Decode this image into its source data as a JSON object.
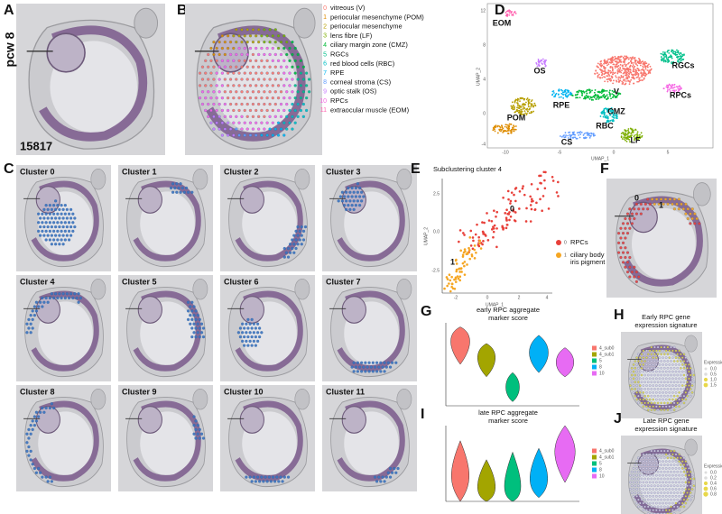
{
  "figure": {
    "A": {
      "letter": "A",
      "age": "pcw 8",
      "sample": "15817"
    },
    "B": {
      "letter": "B",
      "legend": [
        {
          "id": "0",
          "label": "vitreous (V)",
          "color": "#f8766d"
        },
        {
          "id": "1",
          "label": "periocular mesenchyme (POM)",
          "color": "#de8c00"
        },
        {
          "id": "2",
          "label": "periocular mesenchyme",
          "color": "#b79f00"
        },
        {
          "id": "3",
          "label": "lens fibre (LF)",
          "color": "#7cae00"
        },
        {
          "id": "4",
          "label": "ciliary margin zone (CMZ)",
          "color": "#00ba38"
        },
        {
          "id": "5",
          "label": "RGCs",
          "color": "#00c08b"
        },
        {
          "id": "6",
          "label": "red blood cells (RBC)",
          "color": "#00bfc4"
        },
        {
          "id": "7",
          "label": "RPE",
          "color": "#00b4f0"
        },
        {
          "id": "8",
          "label": "corneal stroma (CS)",
          "color": "#619cff"
        },
        {
          "id": "9",
          "label": "optic stalk (OS)",
          "color": "#c77cff"
        },
        {
          "id": "10",
          "label": "RPCs",
          "color": "#f564e3"
        },
        {
          "id": "11",
          "label": "extraocular muscle (EOM)",
          "color": "#ff64b0"
        }
      ]
    },
    "C": {
      "letter": "C",
      "clusters": [
        "Cluster 0",
        "Cluster 1",
        "Cluster 2",
        "Cluster 3",
        "Cluster 4",
        "Cluster 5",
        "Cluster 6",
        "Cluster 7",
        "Cluster 8",
        "Cluster 9",
        "Cluster 10",
        "Cluster 11"
      ]
    },
    "D": {
      "letter": "D",
      "x_label": "UMAP_1",
      "y_label": "UMAP_2",
      "x_ticks": [
        "-10",
        "-5",
        "0",
        "5"
      ],
      "y_ticks": [
        "12",
        "8",
        "4",
        "0",
        "-4"
      ],
      "labels": [
        "EOM",
        "OS",
        "V",
        "RGCs",
        "RPCs",
        "CMZ",
        "RPE",
        "POM",
        "RBC",
        "CS",
        "LF"
      ]
    },
    "E": {
      "letter": "E",
      "title": "Subclustering cluster 4",
      "x_label": "UMAP_1",
      "y_label": "UMAP_2",
      "x_ticks": [
        "-2",
        "0",
        "2",
        "4"
      ],
      "y_ticks": [
        "2.5",
        "0.0",
        "-2.5"
      ],
      "cluster_labels": [
        "0",
        "1"
      ],
      "legend": [
        {
          "id": "0",
          "label": [
            "RPCs"
          ],
          "color": "#e8403a"
        },
        {
          "id": "1",
          "label": [
            "ciliary body +",
            "iris pigment epithelium"
          ],
          "color": "#f5a623"
        }
      ]
    },
    "F": {
      "letter": "F",
      "labels": [
        "0",
        "1"
      ]
    },
    "G": {
      "letter": "G",
      "title": [
        "early RPC aggregate",
        "marker score"
      ],
      "legend": [
        "4_sub0",
        "4_sub1",
        "5",
        "8",
        "10"
      ]
    },
    "H": {
      "letter": "H",
      "title": [
        "Early RPC gene",
        "expression signature"
      ],
      "legend_title": "Expression",
      "legend": [
        "0.0",
        "0.5",
        "1.0",
        "1.5"
      ]
    },
    "I": {
      "letter": "I",
      "title": [
        "late RPC aggregate",
        "marker score"
      ],
      "legend": [
        "4_sub0",
        "4_sub1",
        "5",
        "8",
        "10"
      ]
    },
    "J": {
      "letter": "J",
      "title": [
        "Late RPC gene",
        "expression signature"
      ],
      "legend_title": "Expression",
      "legend": [
        "0.0",
        "0.2",
        "0.4",
        "0.6",
        "0.8"
      ]
    }
  }
}
